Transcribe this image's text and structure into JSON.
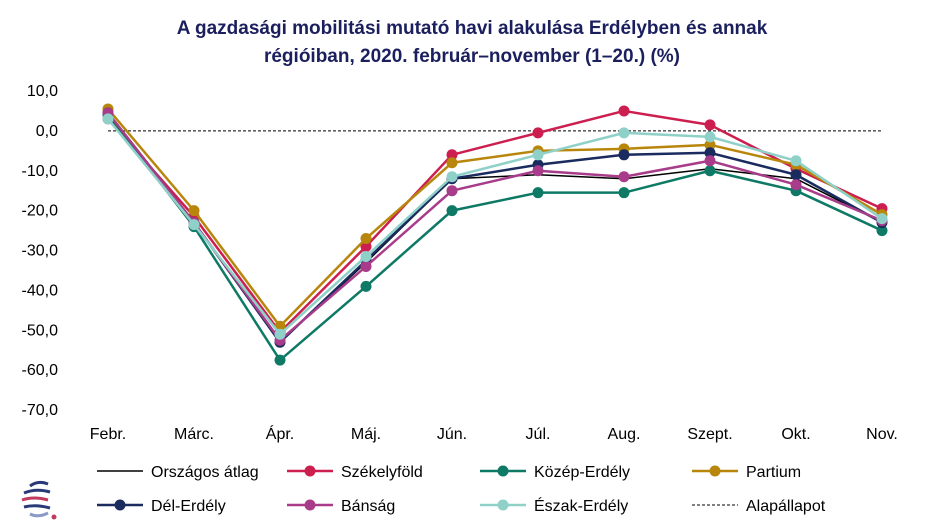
{
  "chart_data": {
    "type": "line",
    "title_lines": [
      "A gazdasági mobilitási mutató havi alakulása Erdélyben és annak",
      "régióiban, 2020. február–november (1–20.) (%)"
    ],
    "categories": [
      "Febr.",
      "Márc.",
      "Ápr.",
      "Máj.",
      "Jún.",
      "Júl.",
      "Aug.",
      "Szept.",
      "Okt.",
      "Nov."
    ],
    "ylim": [
      -70,
      10
    ],
    "yticks": [
      10,
      0,
      -10,
      -20,
      -30,
      -40,
      -50,
      -60,
      -70
    ],
    "ytick_labels": [
      "10,0",
      "0,0",
      "-10,0",
      "-20,0",
      "-30,0",
      "-40,0",
      "-50,0",
      "-60,0",
      "-70,0"
    ],
    "grid": false,
    "legend_position": "bottom",
    "series": [
      {
        "name": "Országos átlag",
        "color": "#000000",
        "marker": false,
        "dashed": false,
        "width": 1.5,
        "values": [
          3.5,
          -23,
          -53,
          -33,
          -12,
          -11,
          -12,
          -9.5,
          -12,
          -23
        ]
      },
      {
        "name": "Székelyföld",
        "color": "#cc1f4f",
        "marker": true,
        "dashed": false,
        "width": 2.5,
        "values": [
          3.0,
          -21.5,
          -50.5,
          -29,
          -6,
          -0.5,
          5,
          1.5,
          -9.5,
          -19.5
        ]
      },
      {
        "name": "Közép-Erdély",
        "color": "#0e7a66",
        "marker": true,
        "dashed": false,
        "width": 2.5,
        "values": [
          4.0,
          -24,
          -57.5,
          -39,
          -20,
          -15.5,
          -15.5,
          -10,
          -15,
          -25
        ]
      },
      {
        "name": "Partium",
        "color": "#b8860b",
        "marker": true,
        "dashed": false,
        "width": 2.5,
        "values": [
          5.5,
          -20,
          -49,
          -27,
          -8,
          -5,
          -4.5,
          -3.5,
          -8.5,
          -21
        ]
      },
      {
        "name": "Dél-Erdély",
        "color": "#1a2b5f",
        "marker": true,
        "dashed": false,
        "width": 2.5,
        "values": [
          4.5,
          -23,
          -53,
          -32.5,
          -12,
          -8.5,
          -6,
          -5.5,
          -11,
          -23
        ]
      },
      {
        "name": "Bánság",
        "color": "#a83b8a",
        "marker": true,
        "dashed": false,
        "width": 2.5,
        "values": [
          4.5,
          -23,
          -52.5,
          -34,
          -15,
          -10,
          -11.5,
          -7.5,
          -13.5,
          -22.5
        ]
      },
      {
        "name": "Észak-Erdély",
        "color": "#8fd1c9",
        "marker": true,
        "dashed": false,
        "width": 2.5,
        "values": [
          3.0,
          -23.5,
          -51,
          -31.5,
          -11.5,
          -6,
          -0.5,
          -1.5,
          -7.5,
          -22
        ]
      },
      {
        "name": "Alapállapot",
        "color": "#000000",
        "marker": false,
        "dashed": true,
        "width": 1,
        "values": [
          0,
          0,
          0,
          0,
          0,
          0,
          0,
          0,
          0,
          0
        ]
      }
    ]
  },
  "logo": {
    "name": "institute-logo"
  }
}
